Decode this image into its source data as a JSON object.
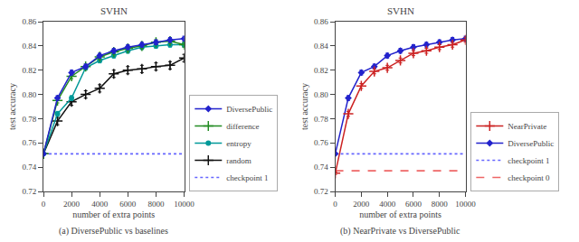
{
  "chart_data": [
    {
      "type": "line",
      "title": "SVHN",
      "xlabel": "number of extra points",
      "ylabel": "test accuracy",
      "annotations": [
        "(a) DiversePublic vs baselines"
      ],
      "x": [
        0,
        1000,
        2000,
        3000,
        4000,
        5000,
        6000,
        7000,
        8000,
        9000,
        10000
      ],
      "xlim": [
        0,
        10000
      ],
      "ylim": [
        0.72,
        0.86
      ],
      "xticks": [
        0,
        2000,
        4000,
        6000,
        8000,
        10000
      ],
      "yticks": [
        0.72,
        0.74,
        0.76,
        0.78,
        {
          "value": 0.8,
          "label": "0.80"
        },
        0.82,
        0.84,
        0.86
      ],
      "grid": false,
      "legend": "lower right",
      "series": [
        {
          "name": "DiversePublic",
          "color": "#2222cc",
          "marker": "diamond",
          "line_style": "solid",
          "values": [
            0.751,
            0.797,
            0.818,
            0.823,
            0.832,
            0.836,
            0.839,
            0.841,
            0.843,
            0.845,
            0.846
          ],
          "errors": [
            0.001,
            0.002,
            0.002,
            0.002,
            0.002,
            0.002,
            0.002,
            0.002,
            0.002,
            0.002,
            0.002
          ]
        },
        {
          "name": "difference",
          "color": "#228B22",
          "marker": "plus",
          "line_style": "solid",
          "values": [
            0.751,
            0.795,
            0.815,
            0.823,
            0.831,
            0.835,
            0.838,
            0.84,
            0.843,
            0.844,
            0.841
          ],
          "errors": [
            0.001,
            0.002,
            0.002,
            0.002,
            0.002,
            0.002,
            0.002,
            0.002,
            0.002,
            0.002,
            0.002
          ]
        },
        {
          "name": "entropy",
          "color": "#009999",
          "marker": "circle",
          "line_style": "solid",
          "values": [
            0.751,
            0.784,
            0.797,
            0.822,
            0.828,
            0.832,
            0.836,
            0.839,
            0.84,
            0.841,
            0.841
          ],
          "errors": [
            0.001,
            0.002,
            0.002,
            0.002,
            0.002,
            0.002,
            0.002,
            0.002,
            0.002,
            0.002,
            0.002
          ]
        },
        {
          "name": "random",
          "color": "#111111",
          "marker": "plus",
          "line_style": "solid",
          "values": [
            0.751,
            0.778,
            0.794,
            0.8,
            0.805,
            0.817,
            0.82,
            0.821,
            0.823,
            0.824,
            0.83
          ],
          "errors": [
            0.001,
            0.003,
            0.003,
            0.003,
            0.003,
            0.003,
            0.003,
            0.003,
            0.003,
            0.003,
            0.003
          ]
        },
        {
          "name": "checkpoint 1",
          "type": "hline",
          "color": "#6666ff",
          "line_style": "dotted",
          "value": 0.751
        }
      ]
    },
    {
      "type": "line",
      "title": "SVHN",
      "xlabel": "number of extra points",
      "ylabel": "test accuracy",
      "annotations": [
        "(b) NearPrivate vs DiversePublic"
      ],
      "x": [
        0,
        1000,
        2000,
        3000,
        4000,
        5000,
        6000,
        7000,
        8000,
        9000,
        10000
      ],
      "xlim": [
        0,
        10000
      ],
      "ylim": [
        0.72,
        0.86
      ],
      "xticks": [
        0,
        2000,
        4000,
        6000,
        8000,
        10000
      ],
      "yticks": [
        0.72,
        0.74,
        0.76,
        0.78,
        {
          "value": 0.8,
          "label": "0.80"
        },
        0.82,
        0.84,
        0.86
      ],
      "grid": false,
      "legend": "lower right",
      "series": [
        {
          "name": "NearPrivate",
          "color": "#cc2222",
          "marker": "plus",
          "line_style": "solid",
          "values": [
            0.735,
            0.784,
            0.807,
            0.819,
            0.822,
            0.828,
            0.834,
            0.836,
            0.839,
            0.841,
            0.845
          ],
          "errors": [
            0.001,
            0.002,
            0.002,
            0.002,
            0.002,
            0.002,
            0.002,
            0.002,
            0.002,
            0.002,
            0.002
          ]
        },
        {
          "name": "DiversePublic",
          "color": "#2222cc",
          "marker": "diamond",
          "line_style": "solid",
          "values": [
            0.751,
            0.797,
            0.818,
            0.823,
            0.832,
            0.836,
            0.839,
            0.841,
            0.843,
            0.845,
            0.846
          ],
          "errors": [
            0.001,
            0.002,
            0.002,
            0.002,
            0.002,
            0.002,
            0.002,
            0.002,
            0.002,
            0.002,
            0.002
          ]
        },
        {
          "name": "checkpoint 1",
          "type": "hline",
          "color": "#6666ff",
          "line_style": "dotted",
          "value": 0.751
        },
        {
          "name": "checkpoint 0",
          "type": "hline",
          "color": "#ee6666",
          "line_style": "dashed",
          "value": 0.737
        }
      ]
    }
  ]
}
